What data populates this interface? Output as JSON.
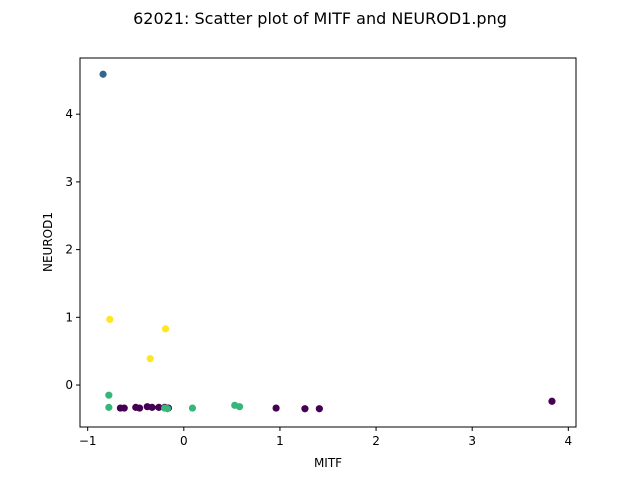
{
  "chart_data": {
    "type": "scatter",
    "title": "62021: Scatter plot of MITF and NEUROD1.png",
    "xlabel": "MITF",
    "ylabel": "NEUROD1",
    "xlim": [
      -1.08,
      4.08
    ],
    "ylim": [
      -0.62,
      4.83
    ],
    "xticks": [
      -1,
      0,
      1,
      2,
      3,
      4
    ],
    "yticks": [
      0,
      1,
      2,
      3,
      4
    ],
    "grid": false,
    "series": [
      {
        "color": "#440154",
        "points": [
          [
            -0.66,
            -0.34
          ],
          [
            -0.62,
            -0.34
          ],
          [
            -0.5,
            -0.33
          ],
          [
            -0.46,
            -0.34
          ],
          [
            -0.38,
            -0.32
          ],
          [
            -0.33,
            -0.33
          ],
          [
            -0.26,
            -0.33
          ],
          [
            -0.2,
            -0.33
          ],
          [
            -0.16,
            -0.34
          ],
          [
            0.96,
            -0.34
          ],
          [
            1.26,
            -0.35
          ],
          [
            1.41,
            -0.35
          ],
          [
            3.83,
            -0.24
          ]
        ]
      },
      {
        "color": "#31688e",
        "points": [
          [
            -0.84,
            4.59
          ]
        ]
      },
      {
        "color": "#35b779",
        "points": [
          [
            -0.78,
            -0.15
          ],
          [
            -0.78,
            -0.33
          ],
          [
            -0.2,
            -0.34
          ],
          [
            -0.17,
            -0.35
          ],
          [
            0.09,
            -0.34
          ],
          [
            0.53,
            -0.3
          ],
          [
            0.58,
            -0.32
          ]
        ]
      },
      {
        "color": "#fde725",
        "points": [
          [
            -0.77,
            0.97
          ],
          [
            -0.35,
            0.39
          ],
          [
            -0.19,
            0.83
          ]
        ]
      }
    ]
  }
}
